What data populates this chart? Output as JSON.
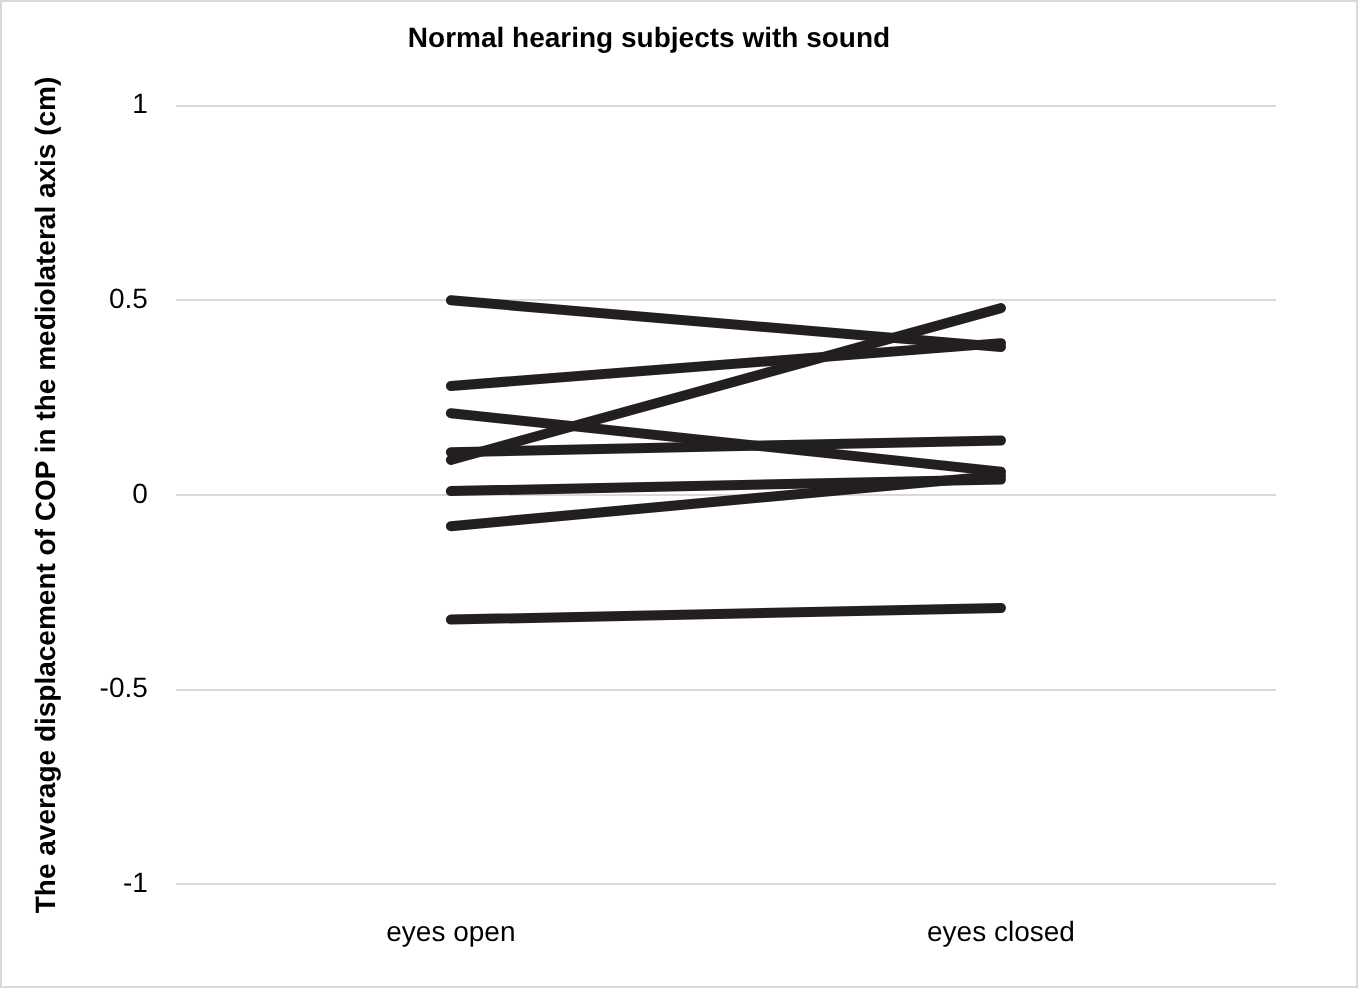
{
  "chart_data": {
    "type": "line",
    "title": "Normal hearing subjects with sound",
    "ylabel": "The average displacement of COP in the mediolateral axis (cm)",
    "categories": [
      "eyes open",
      "eyes closed"
    ],
    "series": [
      {
        "color": "#231f20",
        "values": [
          0.5,
          0.38
        ]
      },
      {
        "color": "#231f20",
        "values": [
          0.28,
          0.39
        ]
      },
      {
        "color": "#231f20",
        "values": [
          0.09,
          0.48
        ]
      },
      {
        "color": "#231f20",
        "values": [
          0.21,
          0.06
        ]
      },
      {
        "color": "#231f20",
        "values": [
          0.11,
          0.14
        ]
      },
      {
        "color": "#231f20",
        "values": [
          0.01,
          0.04
        ]
      },
      {
        "color": "#231f20",
        "values": [
          -0.08,
          0.05
        ]
      },
      {
        "color": "#231f20",
        "values": [
          -0.32,
          -0.29
        ]
      }
    ],
    "ylim": [
      -1,
      1
    ],
    "yticks": [
      -1,
      -0.5,
      0,
      0.5,
      1
    ],
    "grid": "y",
    "legend": false,
    "marker": "none",
    "line_style": "solid"
  }
}
